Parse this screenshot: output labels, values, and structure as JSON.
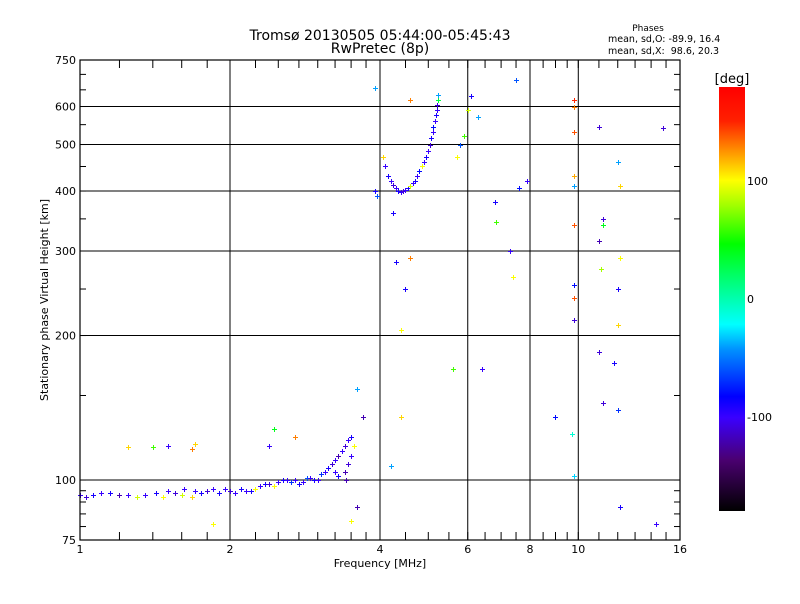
{
  "chart_data": {
    "type": "scatter",
    "title": "Tromsø 20130505 05:44:00-05:45:43",
    "subtitle": "RwPretec (8p)",
    "stats": {
      "heading": "Phases",
      "line_o": "mean, sd,O: -89.9, 16.4",
      "line_x": "mean, sd,X:  98.6, 20.3"
    },
    "xlabel": "Frequency [MHz]",
    "ylabel": "Stationary phase Virtual Height [km]",
    "xscale": "log",
    "yscale": "log",
    "xlim": [
      1,
      16
    ],
    "ylim": [
      75,
      750
    ],
    "xticks": [
      1,
      2,
      4,
      6,
      8,
      10,
      16
    ],
    "xtick_labels": [
      "1",
      "2",
      "4",
      "6",
      "8",
      "10",
      "16"
    ],
    "yticks": [
      75,
      100,
      200,
      300,
      400,
      500,
      600,
      750
    ],
    "ytick_labels": [
      "75",
      "100",
      "200",
      "300",
      "400",
      "500",
      "600",
      "750"
    ],
    "xgrid": [
      2,
      4,
      6,
      8,
      10
    ],
    "ygrid": [
      100,
      200,
      300,
      400,
      500,
      600
    ],
    "colorbar": {
      "label": "[deg]",
      "range": [
        -180,
        180
      ],
      "ticks": [
        100,
        0,
        -100
      ],
      "tick_labels": [
        "100",
        "0",
        "-100"
      ]
    },
    "point_columns": [
      "frequency_MHz",
      "height_km",
      "phase_deg"
    ],
    "points": [
      [
        1.0,
        93,
        -100
      ],
      [
        1.03,
        92,
        -110
      ],
      [
        1.06,
        93,
        -90
      ],
      [
        1.1,
        94,
        -100
      ],
      [
        1.15,
        94,
        -90
      ],
      [
        1.2,
        93,
        -120
      ],
      [
        1.25,
        93,
        -100
      ],
      [
        1.3,
        92,
        90
      ],
      [
        1.35,
        93,
        -100
      ],
      [
        1.42,
        94,
        -90
      ],
      [
        1.47,
        92,
        100
      ],
      [
        1.5,
        95,
        -100
      ],
      [
        1.55,
        94,
        -110
      ],
      [
        1.6,
        93,
        90
      ],
      [
        1.62,
        96,
        -100
      ],
      [
        1.68,
        92,
        110
      ],
      [
        1.7,
        95,
        -100
      ],
      [
        1.75,
        94,
        -90
      ],
      [
        1.8,
        95,
        -110
      ],
      [
        1.85,
        96,
        -100
      ],
      [
        1.9,
        94,
        -90
      ],
      [
        1.95,
        96,
        -100
      ],
      [
        2.0,
        95,
        -110
      ],
      [
        2.05,
        94,
        -100
      ],
      [
        2.1,
        96,
        -90
      ],
      [
        2.15,
        95,
        -100
      ],
      [
        2.2,
        95,
        -90
      ],
      [
        2.25,
        96,
        100
      ],
      [
        2.3,
        97,
        -100
      ],
      [
        2.35,
        98,
        -90
      ],
      [
        2.4,
        98,
        -110
      ],
      [
        2.45,
        97,
        100
      ],
      [
        2.5,
        99,
        -100
      ],
      [
        2.55,
        100,
        -90
      ],
      [
        2.6,
        100,
        -100
      ],
      [
        2.65,
        99,
        -70
      ],
      [
        2.7,
        100,
        -100
      ],
      [
        2.75,
        98,
        -90
      ],
      [
        2.8,
        99,
        -100
      ],
      [
        2.85,
        101,
        -60
      ],
      [
        2.9,
        101,
        -100
      ],
      [
        2.95,
        100,
        -90
      ],
      [
        3.0,
        100,
        -100
      ],
      [
        3.05,
        103,
        -70
      ],
      [
        3.1,
        104,
        -100
      ],
      [
        3.15,
        106,
        -90
      ],
      [
        3.2,
        108,
        -110
      ],
      [
        3.25,
        110,
        -100
      ],
      [
        3.3,
        112,
        -120
      ],
      [
        3.35,
        115,
        -100
      ],
      [
        3.4,
        118,
        -110
      ],
      [
        3.45,
        121,
        -100
      ],
      [
        3.5,
        123,
        -90
      ],
      [
        3.3,
        102,
        -90
      ],
      [
        3.4,
        104,
        -120
      ],
      [
        3.25,
        104,
        -100
      ],
      [
        3.45,
        108,
        -110
      ],
      [
        3.5,
        112,
        -100
      ],
      [
        3.42,
        100,
        -120
      ],
      [
        3.55,
        118,
        100
      ],
      [
        3.9,
        400,
        -90
      ],
      [
        3.95,
        390,
        -60
      ],
      [
        4.05,
        470,
        110
      ],
      [
        4.1,
        450,
        -100
      ],
      [
        4.15,
        430,
        -90
      ],
      [
        4.2,
        420,
        -100
      ],
      [
        4.25,
        412,
        -110
      ],
      [
        4.3,
        405,
        -100
      ],
      [
        4.35,
        400,
        -90
      ],
      [
        4.4,
        398,
        -100
      ],
      [
        4.45,
        400,
        -110
      ],
      [
        4.5,
        402,
        -100
      ],
      [
        4.55,
        405,
        -90
      ],
      [
        4.6,
        410,
        90
      ],
      [
        4.65,
        415,
        -100
      ],
      [
        4.7,
        420,
        -90
      ],
      [
        4.75,
        430,
        -100
      ],
      [
        4.8,
        440,
        -80
      ],
      [
        4.85,
        450,
        100
      ],
      [
        4.9,
        460,
        -100
      ],
      [
        4.95,
        470,
        -90
      ],
      [
        5.0,
        485,
        -100
      ],
      [
        5.03,
        500,
        -110
      ],
      [
        5.06,
        515,
        -90
      ],
      [
        5.1,
        530,
        -100
      ],
      [
        5.12,
        545,
        -80
      ],
      [
        5.15,
        560,
        -100
      ],
      [
        5.18,
        575,
        -90
      ],
      [
        5.2,
        590,
        -100
      ],
      [
        5.2,
        605,
        -110
      ],
      [
        5.22,
        620,
        30
      ],
      [
        5.22,
        635,
        -40
      ],
      [
        4.3,
        285,
        -90
      ],
      [
        4.5,
        250,
        -90
      ],
      [
        4.4,
        205,
        100
      ],
      [
        4.6,
        290,
        130
      ],
      [
        4.6,
        620,
        130
      ],
      [
        5.7,
        470,
        100
      ],
      [
        5.8,
        500,
        -60
      ],
      [
        6.0,
        590,
        90
      ],
      [
        6.1,
        630,
        -90
      ],
      [
        6.3,
        570,
        -40
      ],
      [
        6.4,
        170,
        -100
      ],
      [
        5.6,
        170,
        60
      ],
      [
        5.9,
        520,
        60
      ],
      [
        6.8,
        380,
        -90
      ],
      [
        6.85,
        345,
        60
      ],
      [
        7.3,
        300,
        -100
      ],
      [
        7.4,
        265,
        100
      ],
      [
        7.5,
        680,
        -60
      ],
      [
        7.6,
        405,
        -80
      ],
      [
        7.9,
        420,
        -100
      ],
      [
        9.0,
        135,
        -80
      ],
      [
        9.8,
        620,
        150
      ],
      [
        9.8,
        600,
        130
      ],
      [
        9.8,
        530,
        140
      ],
      [
        9.8,
        430,
        120
      ],
      [
        9.8,
        410,
        -40
      ],
      [
        9.8,
        340,
        140
      ],
      [
        9.8,
        255,
        -80
      ],
      [
        9.8,
        240,
        140
      ],
      [
        9.8,
        215,
        -110
      ],
      [
        9.7,
        125,
        -10
      ],
      [
        9.8,
        102,
        -30
      ],
      [
        11.0,
        545,
        -110
      ],
      [
        11.2,
        350,
        -110
      ],
      [
        11.2,
        340,
        40
      ],
      [
        11.0,
        315,
        -120
      ],
      [
        11.1,
        275,
        80
      ],
      [
        11.0,
        185,
        -110
      ],
      [
        11.2,
        145,
        -110
      ],
      [
        12.0,
        460,
        -40
      ],
      [
        12.1,
        410,
        110
      ],
      [
        12.1,
        290,
        100
      ],
      [
        12.0,
        250,
        -90
      ],
      [
        12.0,
        210,
        110
      ],
      [
        11.8,
        175,
        -90
      ],
      [
        12.0,
        140,
        -70
      ],
      [
        12.1,
        88,
        -90
      ],
      [
        14.3,
        81,
        -100
      ],
      [
        14.8,
        540,
        -110
      ],
      [
        3.6,
        155,
        -40
      ],
      [
        3.7,
        135,
        -120
      ],
      [
        3.6,
        88,
        -120
      ],
      [
        3.5,
        82,
        100
      ],
      [
        4.2,
        107,
        -40
      ],
      [
        4.4,
        135,
        110
      ],
      [
        3.9,
        655,
        -40
      ],
      [
        4.25,
        360,
        -90
      ],
      [
        2.45,
        128,
        40
      ],
      [
        2.7,
        123,
        130
      ],
      [
        2.4,
        118,
        -100
      ],
      [
        1.25,
        117,
        110
      ],
      [
        1.4,
        117,
        60
      ],
      [
        1.5,
        118,
        -100
      ],
      [
        1.7,
        119,
        110
      ],
      [
        1.68,
        116,
        130
      ],
      [
        1.85,
        81,
        100
      ]
    ]
  }
}
